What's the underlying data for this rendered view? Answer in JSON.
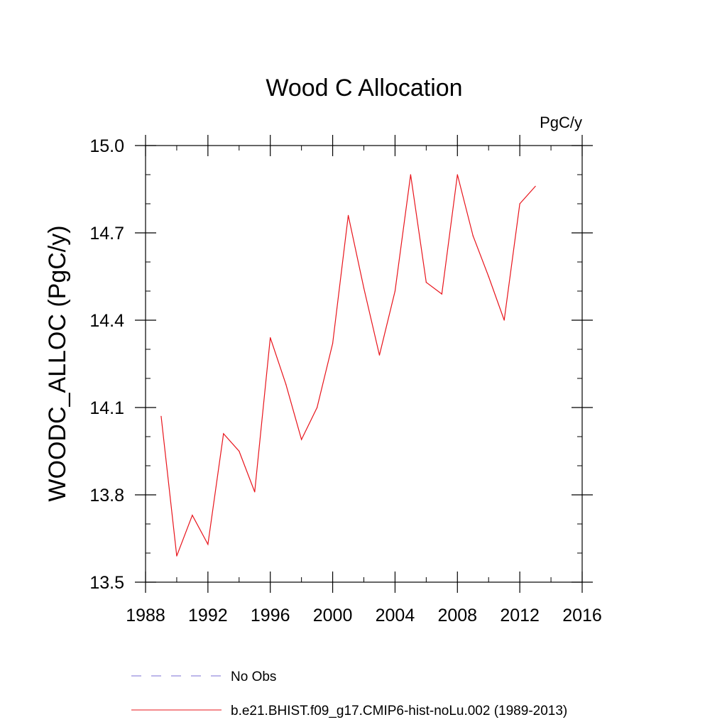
{
  "chart_data": {
    "type": "line",
    "title": "Wood C Allocation",
    "units_label": "PgC/y",
    "ylabel": "WOODC_ALLOC  (PgC/y)",
    "xlabel": "",
    "xlim": [
      1988,
      2016
    ],
    "ylim": [
      13.5,
      15.0
    ],
    "x_ticks": [
      1988,
      1992,
      1996,
      2000,
      2004,
      2008,
      2012,
      2016
    ],
    "y_ticks": [
      13.5,
      13.8,
      14.1,
      14.4,
      14.7,
      15.0
    ],
    "y_tick_labels": [
      "13.5",
      "13.8",
      "14.1",
      "14.4",
      "14.7",
      "15.0"
    ],
    "x_minor_step": 2,
    "y_minor_step": 0.1,
    "grid": false,
    "legend_position": "bottom",
    "legend": [
      {
        "label": "No Obs",
        "color": "#7b6fd6",
        "style": "dashed"
      },
      {
        "label": "b.e21.BHIST.f09_g17.CMIP6-hist-noLu.002 (1989-2013)",
        "color": "#e8141b",
        "style": "solid"
      }
    ],
    "series": [
      {
        "name": "b.e21.BHIST.f09_g17.CMIP6-hist-noLu.002 (1989-2013)",
        "color": "#e8141b",
        "x": [
          1989,
          1990,
          1991,
          1992,
          1993,
          1994,
          1995,
          1996,
          1997,
          1998,
          1999,
          2000,
          2001,
          2002,
          2003,
          2004,
          2005,
          2006,
          2007,
          2008,
          2009,
          2010,
          2011,
          2012,
          2013
        ],
        "values": [
          14.07,
          13.59,
          13.73,
          13.63,
          14.01,
          13.95,
          13.81,
          14.34,
          14.18,
          13.99,
          14.1,
          14.32,
          14.76,
          14.51,
          14.28,
          14.5,
          14.9,
          14.53,
          14.49,
          14.9,
          14.69,
          14.55,
          14.4,
          14.8,
          14.86
        ]
      }
    ]
  }
}
